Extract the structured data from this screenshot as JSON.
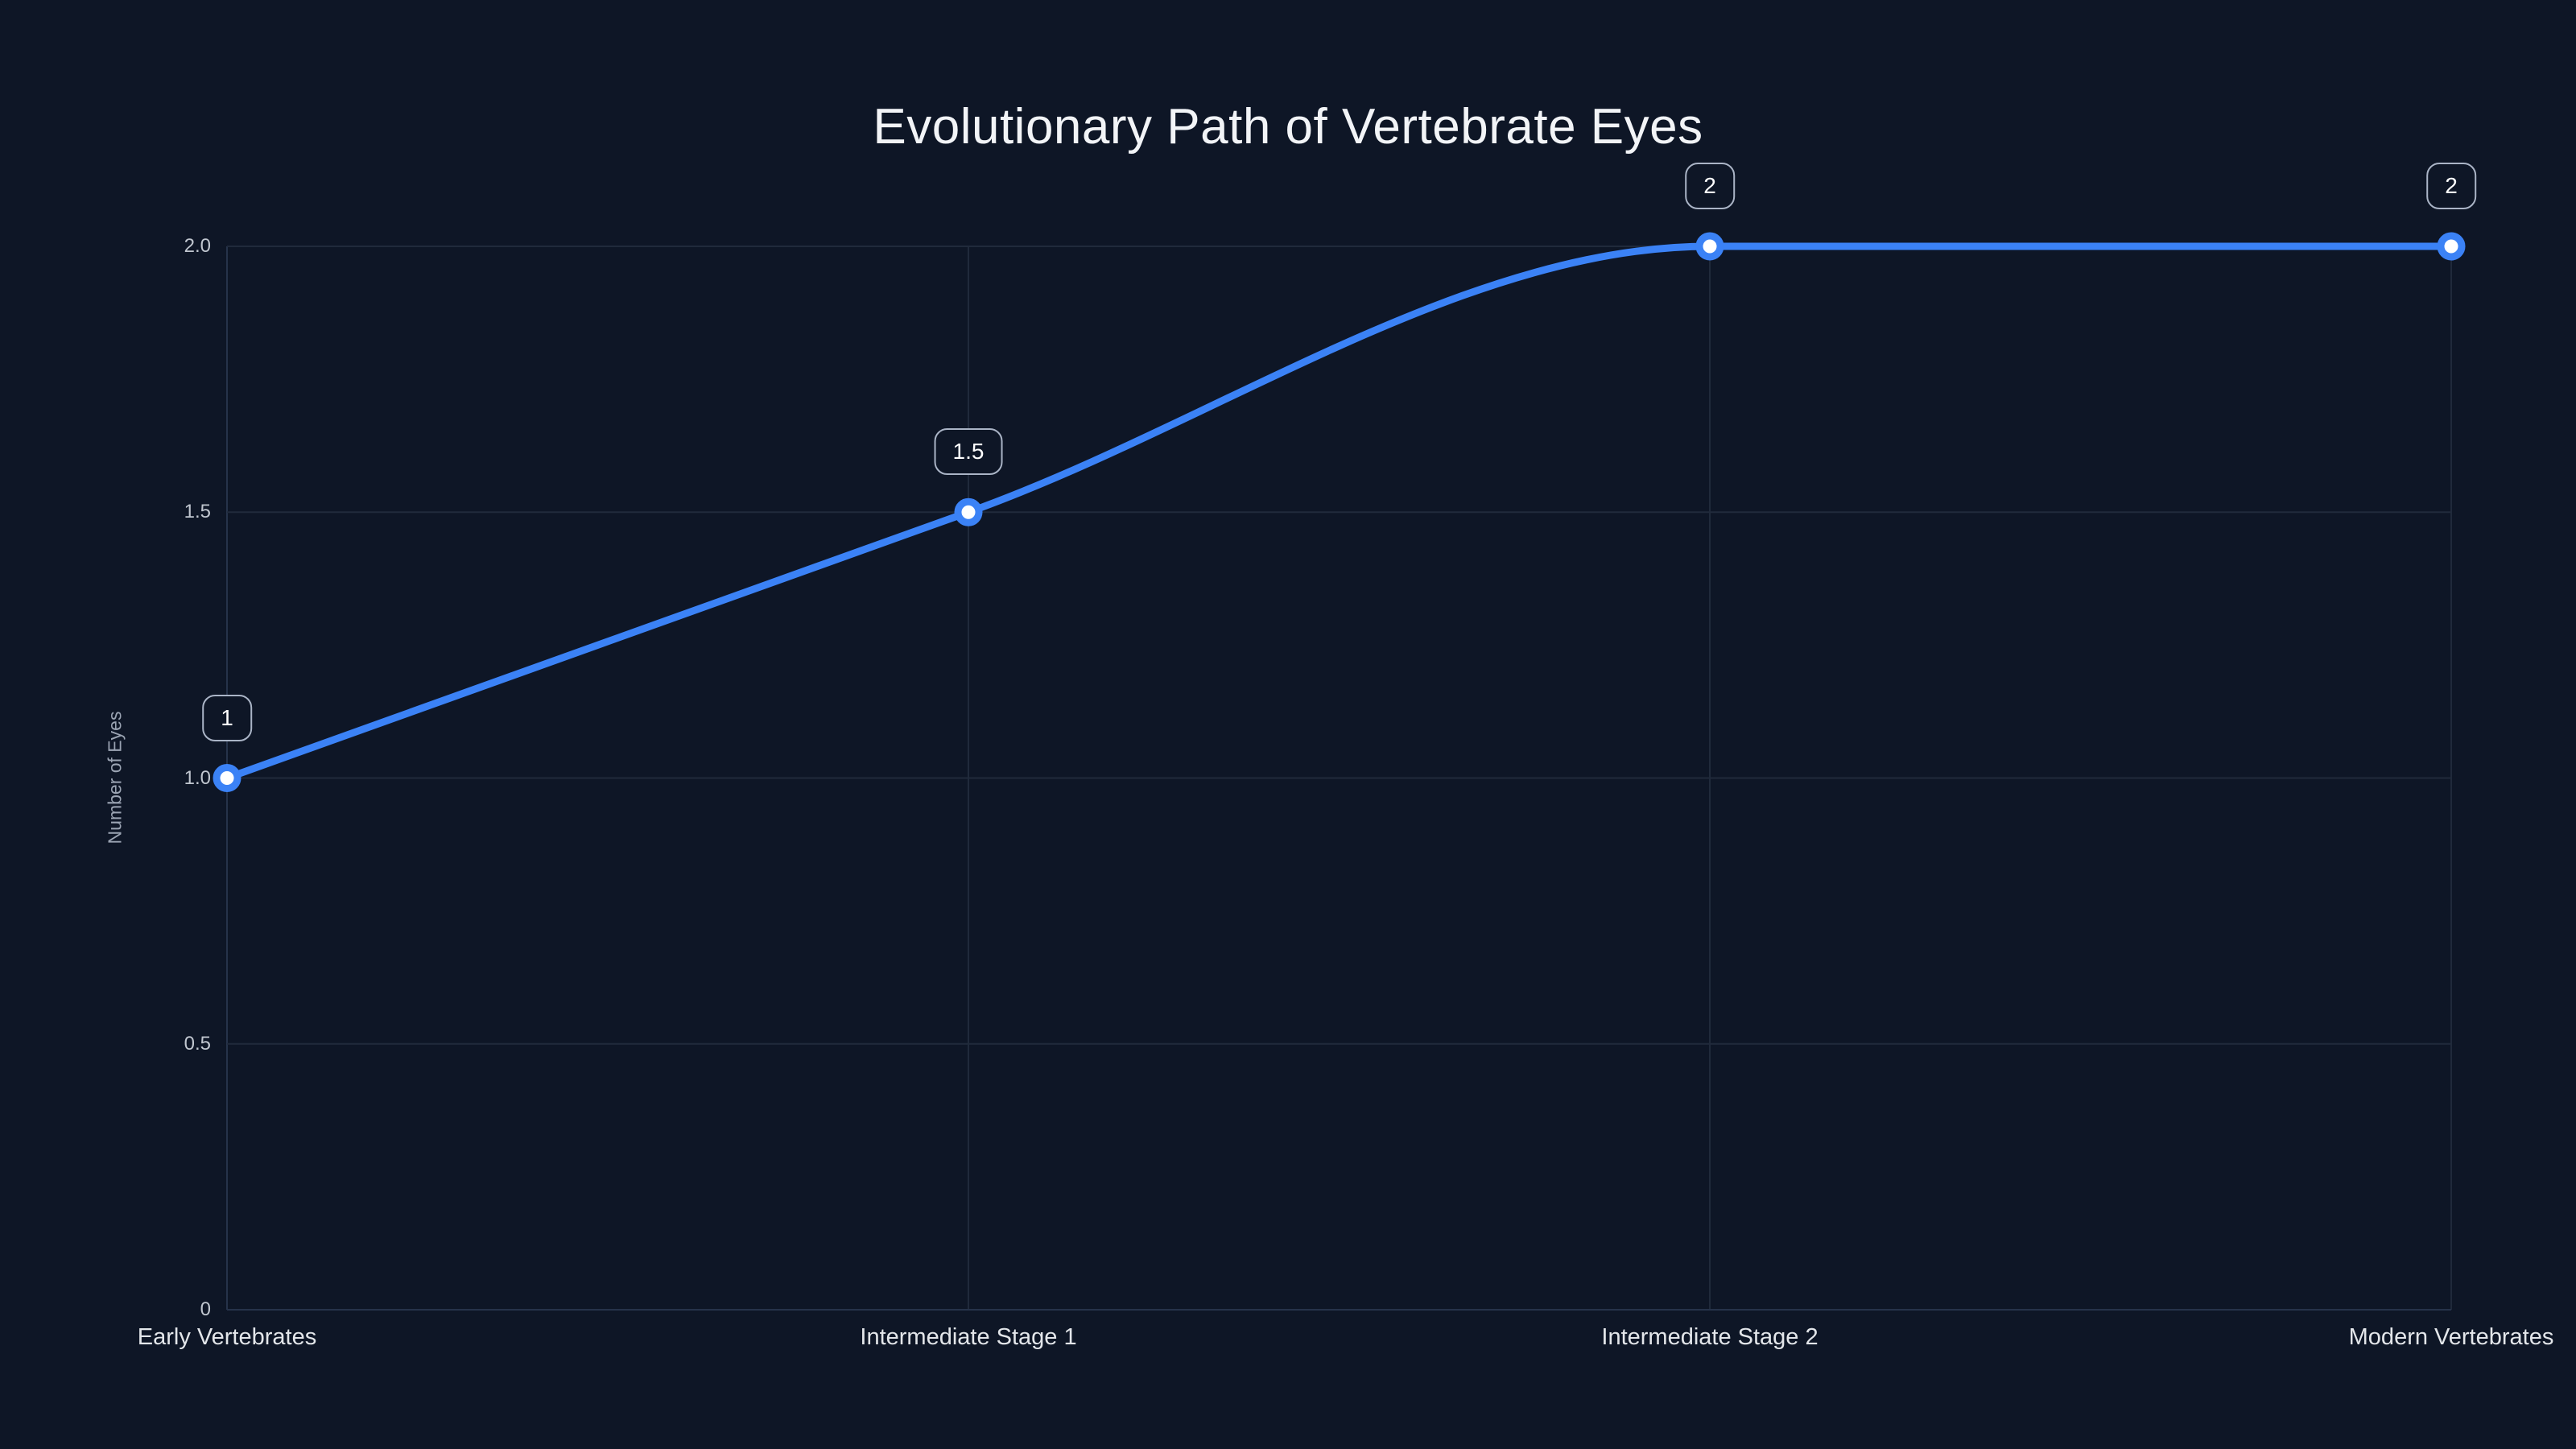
{
  "page": {
    "background": "#0e1626"
  },
  "chart_data": {
    "type": "line",
    "title": "Evolutionary Path of Vertebrate Eyes",
    "xlabel": "",
    "ylabel": "Number of Eyes",
    "categories": [
      "Early Vertebrates",
      "Intermediate Stage 1",
      "Intermediate Stage 2",
      "Modern Vertebrates"
    ],
    "series": [
      {
        "name": "Number of Eyes",
        "values": [
          1,
          1.5,
          2,
          2
        ]
      }
    ],
    "point_labels": [
      "1",
      "1.5",
      "2",
      "2"
    ],
    "ylim": [
      0,
      2
    ],
    "yticks": {
      "values": [
        0,
        0.5,
        1.0,
        1.5,
        2.0
      ],
      "labels": [
        "0",
        "0.5",
        "1.0",
        "1.5",
        "2.0"
      ]
    },
    "grid": true,
    "legend_position": "none",
    "line_color": "#3b82f6",
    "marker_fill": "#ffffff",
    "grid_color": "#202a3b",
    "axis_color": "#26334a",
    "text_color": "#e3e6ea",
    "muted_text_color": "#9aa3b2",
    "label_box_border": "#aab4c6"
  }
}
